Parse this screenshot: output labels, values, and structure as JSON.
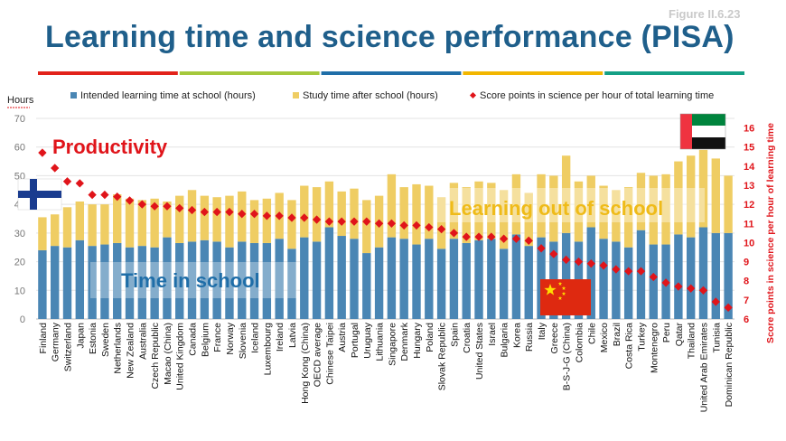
{
  "figure_label": "Figure II.6.23",
  "title": "Learning time and science performance (PISA)",
  "stripe_colors": [
    "#e2231a",
    "#a5c83c",
    "#1f6ea8",
    "#f2b600",
    "#14a085"
  ],
  "chart_data": {
    "type": "bar",
    "stacked": true,
    "y_left_label": "Hours",
    "y_left_lim": [
      0,
      70
    ],
    "y_left_ticks": [
      0,
      10,
      20,
      30,
      40,
      50,
      60,
      70
    ],
    "y_right_label": "Score points in science per hour of learning time",
    "y_right_lim": [
      6,
      16.5
    ],
    "y_right_ticks": [
      6,
      7,
      8,
      9,
      10,
      11,
      12,
      13,
      14,
      15,
      16
    ],
    "grid": true,
    "legend_position": "top",
    "legend": [
      "Intended learning time at school (hours)",
      "Study time after school (hours)",
      "Score points in science per hour of total learning time"
    ],
    "annotations": [
      "Productivity",
      "Learning out of school",
      "Time in school"
    ],
    "categories": [
      "Finland",
      "Germany",
      "Switzerland",
      "Japan",
      "Estonia",
      "Sweden",
      "Netherlands",
      "New Zealand",
      "Australia",
      "Czech Republic",
      "Macao (China)",
      "United Kingdom",
      "Canada",
      "Belgium",
      "France",
      "Norway",
      "Slovenia",
      "Iceland",
      "Luxembourg",
      "Ireland",
      "Latvia",
      "Hong Kong (China)",
      "OECD average",
      "Chinese Taipei",
      "Austria",
      "Portugal",
      "Uruguay",
      "Lithuania",
      "Singapore",
      "Denmark",
      "Hungary",
      "Poland",
      "Slovak Republic",
      "Spain",
      "Croatia",
      "United States",
      "Israel",
      "Bulgaria",
      "Korea",
      "Russia",
      "Italy",
      "Greece",
      "B-S-J-G (China)",
      "Colombia",
      "Chile",
      "Mexico",
      "Brazil",
      "Costa Rica",
      "Turkey",
      "Montenegro",
      "Peru",
      "Qatar",
      "Thailand",
      "United Arab Emirates",
      "Tunisia",
      "Dominican Republic"
    ],
    "series": [
      {
        "name": "Intended learning time at school (hours)",
        "color": "#4a86b4",
        "axis": "left",
        "values": [
          24,
          25.5,
          25,
          27.5,
          25.5,
          26,
          26.5,
          25,
          25.5,
          25,
          28.5,
          26.5,
          27,
          27.5,
          27,
          25,
          27,
          26.5,
          26.5,
          28,
          24.5,
          28.5,
          27,
          32,
          29,
          28,
          23,
          25,
          28.5,
          28,
          26,
          28,
          24.5,
          28,
          26.5,
          27.5,
          28,
          24.5,
          29.5,
          25.5,
          28.5,
          27,
          30,
          27,
          32,
          28,
          27,
          25,
          31,
          26,
          26,
          29.5,
          28.5,
          32,
          30,
          30
        ]
      },
      {
        "name": "Study time after school (hours)",
        "color": "#efcd63",
        "axis": "left",
        "values": [
          11.5,
          11,
          14,
          13.5,
          14.5,
          14,
          17,
          17,
          16,
          17,
          12.5,
          16.5,
          18,
          15.5,
          15.5,
          18,
          17.5,
          15,
          15.5,
          16,
          17,
          18,
          19,
          16,
          15.5,
          17.5,
          18.5,
          18,
          22,
          18,
          21,
          18.5,
          18,
          19.5,
          19.5,
          20.5,
          19.5,
          20.5,
          21,
          18.5,
          22,
          23,
          27,
          21,
          18,
          18.5,
          18,
          21,
          20,
          24,
          24.5,
          25.5,
          28.5,
          27,
          26,
          20
        ]
      },
      {
        "name": "Score points in science per hour of total learning time",
        "color": "#e0141a",
        "axis": "right",
        "type": "scatter",
        "values": [
          14.7,
          13.9,
          13.2,
          13.1,
          12.5,
          12.5,
          12.4,
          12.2,
          12.0,
          11.9,
          11.9,
          11.8,
          11.7,
          11.6,
          11.6,
          11.6,
          11.5,
          11.5,
          11.4,
          11.4,
          11.3,
          11.3,
          11.2,
          11.1,
          11.1,
          11.1,
          11.1,
          11.0,
          11.0,
          10.9,
          10.9,
          10.8,
          10.7,
          10.5,
          10.3,
          10.3,
          10.3,
          10.2,
          10.2,
          10.1,
          9.7,
          9.4,
          9.1,
          9.0,
          8.9,
          8.8,
          8.6,
          8.5,
          8.5,
          8.2,
          7.9,
          7.7,
          7.6,
          7.5,
          6.9,
          6.6
        ]
      }
    ]
  }
}
